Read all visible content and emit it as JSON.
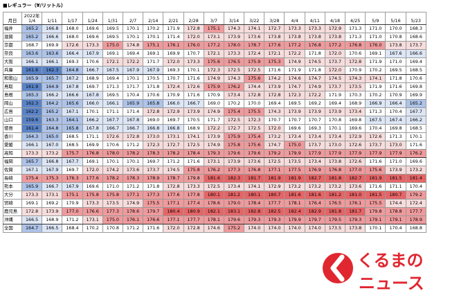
{
  "title": "■レギュラー（¥/リットル）",
  "header": {
    "corner_label": "月日",
    "year_label": "2022年",
    "dates": [
      "1/4",
      "1/11",
      "1/17",
      "1/24",
      "1/31",
      "2/7",
      "2/14",
      "2/21",
      "2/28",
      "3/7",
      "3/14",
      "3/22",
      "3/28",
      "4/4",
      "4/11",
      "4/18",
      "4/25",
      "5/9",
      "5/16",
      "5/23"
    ]
  },
  "colors": {
    "low_blue": "#5a84c8",
    "mid_blue": "#aec3e8",
    "pale_blue": "#dde6f5",
    "neutral": "#ffffff",
    "pale_red": "#f6dcdc",
    "mid_red": "#ee9a9c",
    "high_red": "#e56567",
    "logo_red": "#e0262f"
  },
  "rows": [
    {
      "pref": "福井",
      "values": [
        "165.2",
        "166.8",
        "168.0",
        "169.6",
        "169.5",
        "170.1",
        "170.2",
        "171.9",
        "172.8",
        "175.1",
        "174.3",
        "174.1",
        "172.7",
        "173.3",
        "173.3",
        "172.9",
        "171.3",
        "171.0",
        "170.0",
        "168.3"
      ]
    },
    {
      "pref": "滋賀",
      "values": [
        "165.2",
        "166.6",
        "168.0",
        "169.6",
        "169.5",
        "170.1",
        "170.1",
        "171.4",
        "172.0",
        "173.1",
        "173.9",
        "173.6",
        "173.8",
        "173.8",
        "173.8",
        "173.8",
        "171.3",
        "171.0",
        "170.8",
        "168.6"
      ]
    },
    {
      "pref": "京都",
      "values": [
        "168.7",
        "169.9",
        "172.6",
        "173.3",
        "175.0",
        "174.8",
        "175.1",
        "176.1",
        "176.0",
        "177.2",
        "178.0",
        "178.7",
        "177.6",
        "177.2",
        "176.8",
        "177.2",
        "176.8",
        "176.0",
        "173.8",
        "173.7"
      ]
    },
    {
      "pref": "奈良",
      "values": [
        "163.6",
        "163.6",
        "166.4",
        "167.9",
        "169.1",
        "169.4",
        "169.1",
        "169.9",
        "170.7",
        "172.1",
        "173.3",
        "172.4",
        "172.1",
        "172.2",
        "171.8",
        "172.0",
        "170.6",
        "169.1",
        "167.6",
        "166.6"
      ]
    },
    {
      "pref": "大阪",
      "values": [
        "166.1",
        "166.1",
        "169.3",
        "170.6",
        "172.1",
        "172.2",
        "171.7",
        "172.0",
        "173.3",
        "175.6",
        "176.5",
        "175.9",
        "175.3",
        "174.9",
        "174.5",
        "173.7",
        "172.8",
        "171.9",
        "171.0",
        "169.4"
      ]
    },
    {
      "pref": "兵庫",
      "values": [
        "161.6",
        "162.3",
        "164.8",
        "166.7",
        "167.5",
        "167.9",
        "167.9",
        "169.3",
        "170.1",
        "172.3",
        "172.5",
        "172.5",
        "171.6",
        "171.9",
        "171.8",
        "172.0",
        "170.9",
        "170.2",
        "169.5",
        "168.5"
      ]
    },
    {
      "pref": "和歌山",
      "values": [
        "165.9",
        "165.7",
        "167.2",
        "168.9",
        "169.4",
        "170.1",
        "170.5",
        "170.7",
        "171.6",
        "174.9",
        "174.3",
        "175.6",
        "174.2",
        "174.6",
        "174.7",
        "174.5",
        "174.3",
        "174.1",
        "171.8",
        "170.6"
      ]
    },
    {
      "pref": "鳥取",
      "values": [
        "161.9",
        "164.9",
        "167.8",
        "169.7",
        "171.3",
        "171.7",
        "171.8",
        "172.4",
        "172.6",
        "175.9",
        "176.2",
        "174.4",
        "173.9",
        "174.7",
        "174.9",
        "173.7",
        "173.5",
        "171.9",
        "171.6",
        "169.8"
      ]
    },
    {
      "pref": "島根",
      "values": [
        "165.3",
        "166.2",
        "166.6",
        "167.8",
        "169.5",
        "170.4",
        "170.6",
        "170.9",
        "171.6",
        "170.9",
        "173.4",
        "172.8",
        "172.8",
        "172.3",
        "172.2",
        "171.9",
        "170.3",
        "170.2",
        "170.9",
        "169.9"
      ]
    },
    {
      "pref": "岡山",
      "values": [
        "162.3",
        "164.2",
        "165.6",
        "166.0",
        "166.1",
        "165.9",
        "165.8",
        "166.0",
        "166.7",
        "169.0",
        "170.2",
        "170.0",
        "169.4",
        "169.5",
        "169.2",
        "169.4",
        "168.9",
        "166.9",
        "166.4",
        "165.2"
      ]
    },
    {
      "pref": "広島",
      "values": [
        "162.2",
        "165.2",
        "167.1",
        "170.1",
        "171.1",
        "171.4",
        "172.8",
        "172.9",
        "173.9",
        "174.9",
        "175.4",
        "175.5",
        "174.3",
        "173.9",
        "173.9",
        "173.9",
        "173.4",
        "171.3",
        "170.4",
        "167.7"
      ]
    },
    {
      "pref": "山口",
      "values": [
        "159.6",
        "163.3",
        "164.1",
        "166.2",
        "167.7",
        "167.8",
        "169.0",
        "169.7",
        "170.5",
        "171.7",
        "172.5",
        "172.3",
        "170.7",
        "170.7",
        "170.7",
        "170.8",
        "169.8",
        "167.5",
        "167.4",
        "166.2"
      ]
    },
    {
      "pref": "徳島",
      "values": [
        "161.4",
        "164.8",
        "165.8",
        "167.8",
        "166.7",
        "166.7",
        "166.8",
        "166.8",
        "168.9",
        "172.2",
        "172.7",
        "172.5",
        "172.0",
        "169.6",
        "169.3",
        "170.1",
        "169.6",
        "170.4",
        "169.8",
        "168.5"
      ]
    },
    {
      "pref": "香川",
      "values": [
        "164.3",
        "165.0",
        "168.5",
        "171.1",
        "172.6",
        "172.8",
        "173.0",
        "173.1",
        "174.1",
        "173.9",
        "175.9",
        "175.4",
        "173.2",
        "173.4",
        "173.4",
        "173.4",
        "172.9",
        "172.6",
        "171.3",
        "170.1"
      ]
    },
    {
      "pref": "愛媛",
      "values": [
        "166.1",
        "167.0",
        "168.5",
        "169.9",
        "170.6",
        "171.2",
        "172.3",
        "172.7",
        "172.5",
        "174.9",
        "175.8",
        "175.6",
        "174.7",
        "175.0",
        "173.7",
        "173.0",
        "172.6",
        "173.7",
        "173.0",
        "171.6"
      ]
    },
    {
      "pref": "高知",
      "values": [
        "173.3",
        "173.2",
        "175.7",
        "176.8",
        "178.0",
        "178.2",
        "178.3",
        "178.2",
        "178.4",
        "179.3",
        "179.6",
        "179.6",
        "179.2",
        "179.9",
        "177.9",
        "177.9",
        "177.9",
        "177.9",
        "177.9",
        "176.2"
      ]
    },
    {
      "pref": "福岡",
      "values": [
        "165.7",
        "166.8",
        "167.7",
        "169.1",
        "170.1",
        "170.1",
        "169.7",
        "171.2",
        "171.6",
        "173.1",
        "173.9",
        "173.6",
        "172.5",
        "173.5",
        "173.4",
        "173.8",
        "172.6",
        "171.6",
        "171.0",
        "169.6"
      ]
    },
    {
      "pref": "佐賀",
      "values": [
        "167.1",
        "167.9",
        "169.7",
        "172.0",
        "174.2",
        "173.6",
        "173.7",
        "174.5",
        "175.8",
        "176.2",
        "177.3",
        "176.8",
        "177.1",
        "177.5",
        "176.9",
        "176.8",
        "177.0",
        "175.6",
        "173.9",
        "173.2"
      ]
    },
    {
      "pref": "長崎",
      "values": [
        "175.4",
        "175.3",
        "176.3",
        "177.6",
        "178.2",
        "178.3",
        "178.9",
        "178.7",
        "179.8",
        "181.6",
        "182.3",
        "181.7",
        "181.9",
        "181.9",
        "182.7",
        "181.8",
        "182.7",
        "181.9",
        "181.5",
        "181.4"
      ]
    },
    {
      "pref": "熊本",
      "values": [
        "165.9",
        "166.7",
        "167.9",
        "169.6",
        "171.0",
        "171.2",
        "171.8",
        "172.8",
        "173.3",
        "172.5",
        "173.4",
        "174.1",
        "172.9",
        "173.2",
        "173.2",
        "173.2",
        "173.6",
        "171.6",
        "171.1",
        "170.4"
      ]
    },
    {
      "pref": "大分",
      "values": [
        "173.3",
        "173.1",
        "175.1",
        "175.8",
        "175.8",
        "177.1",
        "177.3",
        "177.6",
        "177.8",
        "180.1",
        "181.2",
        "180.1",
        "180.7",
        "181.6",
        "181.6",
        "181.2",
        "181.0",
        "181.5",
        "180.7",
        "179.2"
      ]
    },
    {
      "pref": "宮崎",
      "values": [
        "169.1",
        "169.2",
        "170.9",
        "173.3",
        "173.5",
        "174.9",
        "175.5",
        "177.1",
        "177.4",
        "178.6",
        "179.0",
        "178.4",
        "177.7",
        "178.1",
        "176.4",
        "176.5",
        "176.1",
        "175.5",
        "174.4",
        "172.4"
      ]
    },
    {
      "pref": "鹿児島",
      "values": [
        "172.8",
        "173.9",
        "177.0",
        "176.6",
        "177.3",
        "178.6",
        "179.7",
        "180.4",
        "180.9",
        "182.1",
        "183.1",
        "182.8",
        "182.5",
        "182.4",
        "182.9",
        "181.8",
        "181.7",
        "179.8",
        "178.8",
        "177.7"
      ]
    },
    {
      "pref": "沖縄",
      "values": [
        "166.5",
        "168.9",
        "171.2",
        "173.1",
        "175.0",
        "176.1",
        "176.6",
        "177.1",
        "177.7",
        "178.1",
        "179.6",
        "179.3",
        "179.3",
        "179.9",
        "179.7",
        "179.5",
        "179.3",
        "179.1",
        "179.1",
        "178.9"
      ]
    },
    {
      "pref": "全国",
      "values": [
        "164.7",
        "166.5",
        "168.4",
        "170.2",
        "170.8",
        "171.2",
        "171.6",
        "172.0",
        "172.8",
        "174.6",
        "175.2",
        "174.0",
        "174.0",
        "174.0",
        "174.0",
        "173.5",
        "173.8",
        "170.1",
        "170.4",
        "168.8"
      ]
    }
  ],
  "logo": {
    "line1": "くるまの",
    "line2": "ニュース"
  }
}
